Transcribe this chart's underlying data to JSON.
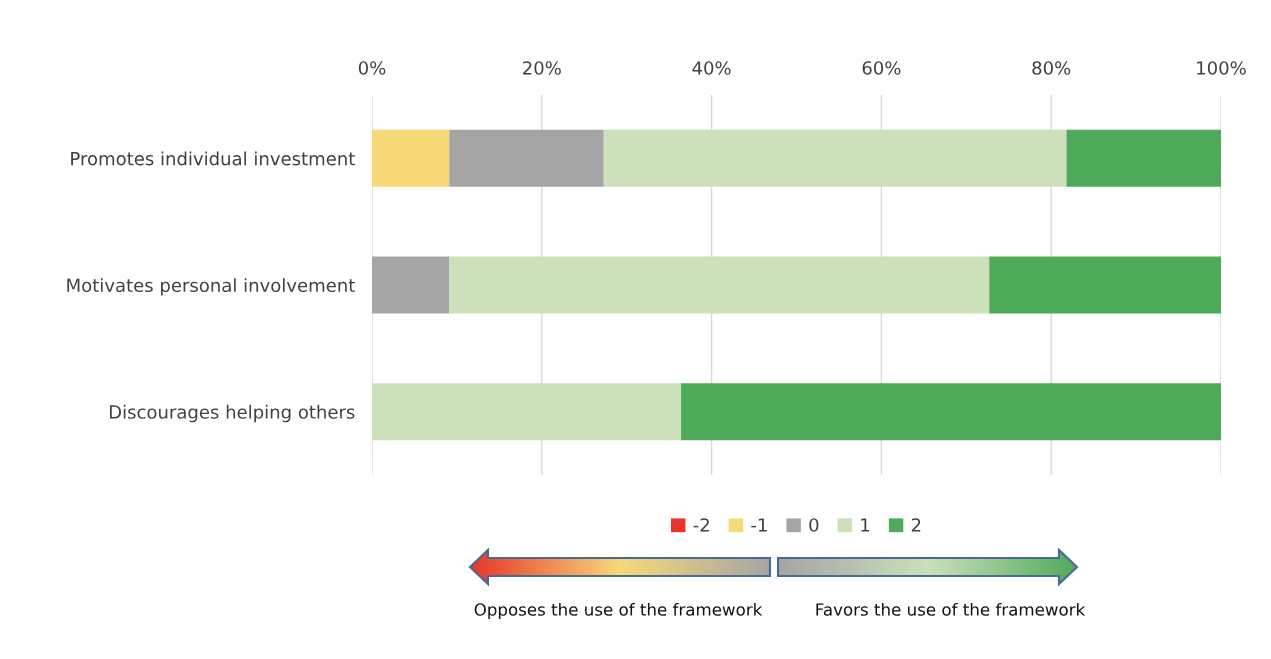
{
  "chart_data": {
    "type": "bar",
    "orientation": "horizontal",
    "stacked": true,
    "categories": [
      "Promotes individual investment",
      "Motivates personal involvement",
      "Discourages helping others"
    ],
    "series": [
      {
        "name": "-2",
        "color": "#e8352a",
        "values": [
          0,
          0,
          0
        ]
      },
      {
        "name": "-1",
        "color": "#f8d978",
        "values": [
          9.1,
          0,
          0
        ]
      },
      {
        "name": "0",
        "color": "#a5a5a5",
        "values": [
          18.2,
          9.1,
          0
        ]
      },
      {
        "name": "1",
        "color": "#cce0b9",
        "values": [
          54.5,
          63.6,
          36.4
        ]
      },
      {
        "name": "2",
        "color": "#4fab5a",
        "values": [
          18.2,
          27.3,
          63.6
        ]
      }
    ],
    "xlim": [
      0,
      100
    ],
    "xticks": [
      {
        "value": 0,
        "label": "0%"
      },
      {
        "value": 20,
        "label": "20%"
      },
      {
        "value": 40,
        "label": "40%"
      },
      {
        "value": 60,
        "label": "60%"
      },
      {
        "value": 80,
        "label": "80%"
      },
      {
        "value": 100,
        "label": "100%"
      }
    ],
    "grid": "x",
    "legend": "bottom",
    "annotations": [
      "Opposes the use of the framework",
      "Favors the use of the framework"
    ]
  }
}
